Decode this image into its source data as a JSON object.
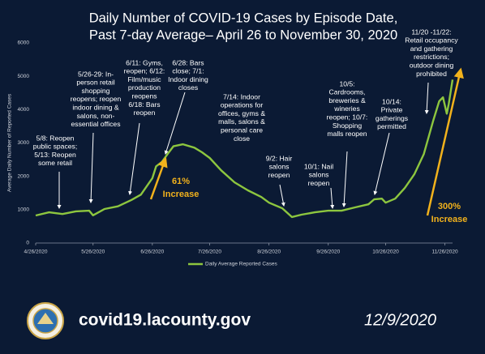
{
  "chart_data": {
    "type": "line",
    "title_lines": [
      "Daily Number of COVID-19 Cases by Episode Date,",
      "Past 7-day Average– April 26 to November 30, 2020"
    ],
    "y_label": "Average Daily Number of Reported Cases",
    "x": [
      "2020-04-26",
      "2020-05-03",
      "2020-05-10",
      "2020-05-17",
      "2020-05-24",
      "2020-05-26",
      "2020-06-01",
      "2020-06-08",
      "2020-06-15",
      "2020-06-20",
      "2020-06-26",
      "2020-06-28",
      "2020-07-01",
      "2020-07-04",
      "2020-07-07",
      "2020-07-12",
      "2020-07-18",
      "2020-07-22",
      "2020-07-26",
      "2020-08-01",
      "2020-08-08",
      "2020-08-15",
      "2020-08-22",
      "2020-08-26",
      "2020-09-02",
      "2020-09-07",
      "2020-09-12",
      "2020-09-19",
      "2020-09-26",
      "2020-10-03",
      "2020-10-10",
      "2020-10-17",
      "2020-10-20",
      "2020-10-24",
      "2020-10-26",
      "2020-10-31",
      "2020-11-05",
      "2020-11-10",
      "2020-11-15",
      "2020-11-20",
      "2020-11-23",
      "2020-11-25",
      "2020-11-27",
      "2020-11-28",
      "2020-11-30"
    ],
    "series": [
      {
        "name": "Daily Average Reported Cases",
        "color": "#8dc63f",
        "values": [
          825,
          920,
          870,
          950,
          970,
          830,
          1020,
          1100,
          1290,
          1450,
          1940,
          2300,
          2430,
          2670,
          2900,
          2960,
          2860,
          2720,
          2550,
          2180,
          1820,
          1580,
          1380,
          1210,
          1040,
          780,
          850,
          920,
          970,
          970,
          1070,
          1160,
          1310,
          1330,
          1210,
          1330,
          1650,
          2060,
          2670,
          3690,
          4250,
          4370,
          3880,
          4170,
          4900
        ]
      }
    ],
    "xlim": [
      "2020-04-26",
      "2020-11-30"
    ],
    "xticks": [
      {
        "value": "2020-04-26",
        "label": "4/26/2020"
      },
      {
        "value": "2020-05-26",
        "label": "5/26/2020"
      },
      {
        "value": "2020-06-26",
        "label": "6/26/2020"
      },
      {
        "value": "2020-07-26",
        "label": "7/26/2020"
      },
      {
        "value": "2020-08-26",
        "label": "8/26/2020"
      },
      {
        "value": "2020-09-26",
        "label": "9/26/2020"
      },
      {
        "value": "2020-10-26",
        "label": "10/26/2020"
      },
      {
        "value": "2020-11-26",
        "label": "11/26/2020"
      }
    ],
    "ylim": [
      0,
      6000
    ],
    "yticks": [
      0,
      1000,
      2000,
      3000,
      4000,
      5000,
      6000
    ],
    "annotations": [
      [
        "5/8: Reopen",
        "public spaces;",
        "5/13: Reopen",
        "some retail"
      ],
      [
        "5/26-29: In-",
        "person retail",
        "shopping",
        "reopens; reopen",
        "indoor dining &",
        "salons, non-",
        "essential offices"
      ],
      [
        "6/11: Gyms,",
        "reopen; 6/12:",
        "Film/music",
        "production",
        "reopens",
        "6/18: Bars",
        "reopen"
      ],
      [
        "6/28: Bars",
        "close; 7/1:",
        "Indoor dining",
        "closes"
      ],
      [
        "7/14: Indoor",
        "operations for",
        "offices, gyms &",
        "malls, salons &",
        "personal care",
        "close"
      ],
      [
        "9/2: Hair",
        "salons",
        "reopen"
      ],
      [
        "10/1: Nail",
        "salons",
        "reopen"
      ],
      [
        "10/5:",
        "Cardrooms,",
        "breweries &",
        "wineries",
        "reopen; 10/7:",
        "Shopping",
        "malls reopen"
      ],
      [
        "10/14:",
        "Private",
        "gatherings",
        "permitted"
      ],
      [
        "11/20 -11/22:",
        "Retail occupancy",
        "and gathering",
        "restrictions;",
        "outdoor dining",
        "prohibited"
      ]
    ],
    "highlights": [
      [
        "61%",
        "Increase"
      ],
      [
        "300%",
        "Increase"
      ]
    ],
    "highlight_color": "#f2b21c",
    "footer": {
      "site": "covid19.lacounty.gov",
      "date": "12/9/2020"
    }
  }
}
